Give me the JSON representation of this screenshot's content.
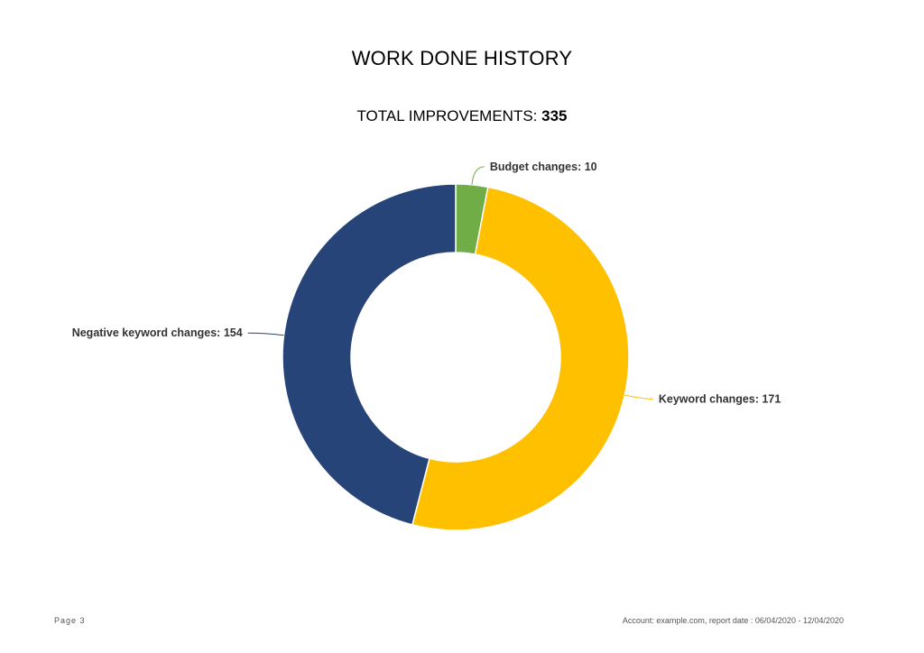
{
  "page": {
    "title": "WORK DONE HISTORY",
    "total_label": "TOTAL IMPROVEMENTS:",
    "total_value": "335"
  },
  "chart_data": {
    "type": "pie",
    "donut": true,
    "title": "WORK DONE HISTORY",
    "total": 335,
    "categories": [
      "Budget changes",
      "Keyword changes",
      "Negative keyword changes"
    ],
    "values": [
      10,
      171,
      154
    ],
    "labels": [
      "Budget changes: 10",
      "Keyword changes: 171",
      "Negative keyword changes: 154"
    ],
    "colors": [
      "#70ad47",
      "#ffc000",
      "#264478"
    ],
    "legend": "none"
  },
  "footer": {
    "page": "Page 3",
    "account": "Account: example.com, report date : 06/04/2020 - 12/04/2020"
  }
}
